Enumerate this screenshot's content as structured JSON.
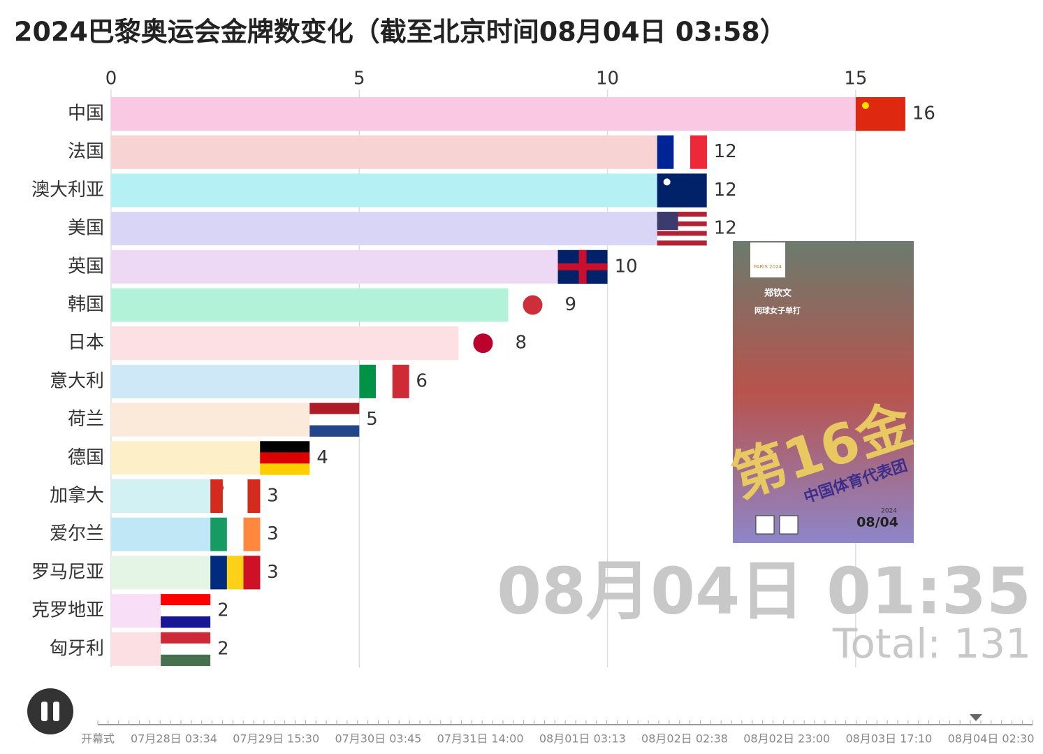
{
  "chart_data": {
    "type": "bar",
    "orientation": "horizontal",
    "title": "2024巴黎奥运会金牌数变化（截至北京时间08月04日 03:58）",
    "categories": [
      "中国",
      "法国",
      "澳大利亚",
      "美国",
      "英国",
      "韩国",
      "日本",
      "意大利",
      "荷兰",
      "德国",
      "加拿大",
      "爱尔兰",
      "罗马尼亚",
      "克罗地亚",
      "匈牙利"
    ],
    "values": [
      16,
      12,
      12,
      12,
      10,
      9,
      8,
      6,
      5,
      4,
      3,
      3,
      3,
      2,
      2
    ],
    "colors": [
      "#f9c9e3",
      "#f7d3d3",
      "#b5f0f5",
      "#d9d5f7",
      "#eed9f5",
      "#b2f2d9",
      "#fde0e3",
      "#cfe8f8",
      "#fbe9d9",
      "#fdf0c8",
      "#d2f1f3",
      "#c0e7f6",
      "#e4f5e6",
      "#f8dff7",
      "#fbdfe3"
    ],
    "xlim": [
      0,
      17.7
    ],
    "xticks": [
      0,
      5,
      10,
      15
    ],
    "grid": true,
    "current_time": "08月04日 01:35",
    "total_label": "Total: 131",
    "timeline": [
      "开幕式",
      "07月28日 03:34",
      "07月29日 15:30",
      "07月30日 03:45",
      "07月31日 14:00",
      "08月01日 03:13",
      "08月02日 02:38",
      "08月02日 23:00",
      "08月03日 17:10",
      "08月04日 02:30"
    ]
  },
  "poster": {
    "big": "第16金",
    "team": "中国体育代表团",
    "athlete": "郑钦文",
    "event": "网球女子单打",
    "year": "2024",
    "date": "08/04",
    "games": "PARIS 2024"
  }
}
